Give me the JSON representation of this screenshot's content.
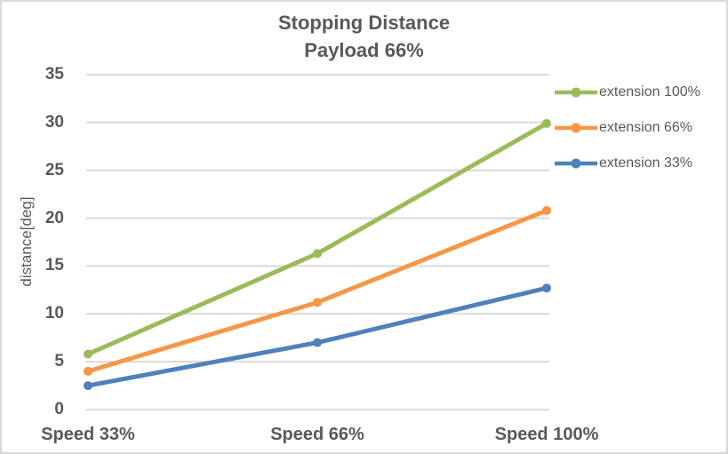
{
  "chart_data": {
    "type": "line",
    "title": "Stopping Distance",
    "subtitle": "Payload 66%",
    "ylabel": "distance[deg]",
    "xlabel": "",
    "categories": [
      "Speed 33%",
      "Speed 66%",
      "Speed 100%"
    ],
    "series": [
      {
        "name": "extension 100%",
        "color": "#9BBB59",
        "values": [
          5.8,
          16.3,
          29.9
        ]
      },
      {
        "name": "extension 66%",
        "color": "#F79646",
        "values": [
          4.0,
          11.2,
          20.8
        ]
      },
      {
        "name": "extension 33%",
        "color": "#4F81BD",
        "values": [
          2.5,
          7.0,
          12.7
        ]
      }
    ],
    "ylim": [
      0,
      35
    ],
    "ytick_step": 5,
    "yticks": [
      0,
      5,
      10,
      15,
      20,
      25,
      30,
      35
    ],
    "grid": "horizontal",
    "legend_position": "right",
    "marker": "circle"
  },
  "colors": {
    "text": "#595959",
    "gridline": "#D9D9D9",
    "border": "#D9D9D9",
    "background": "#FFFFFF"
  }
}
